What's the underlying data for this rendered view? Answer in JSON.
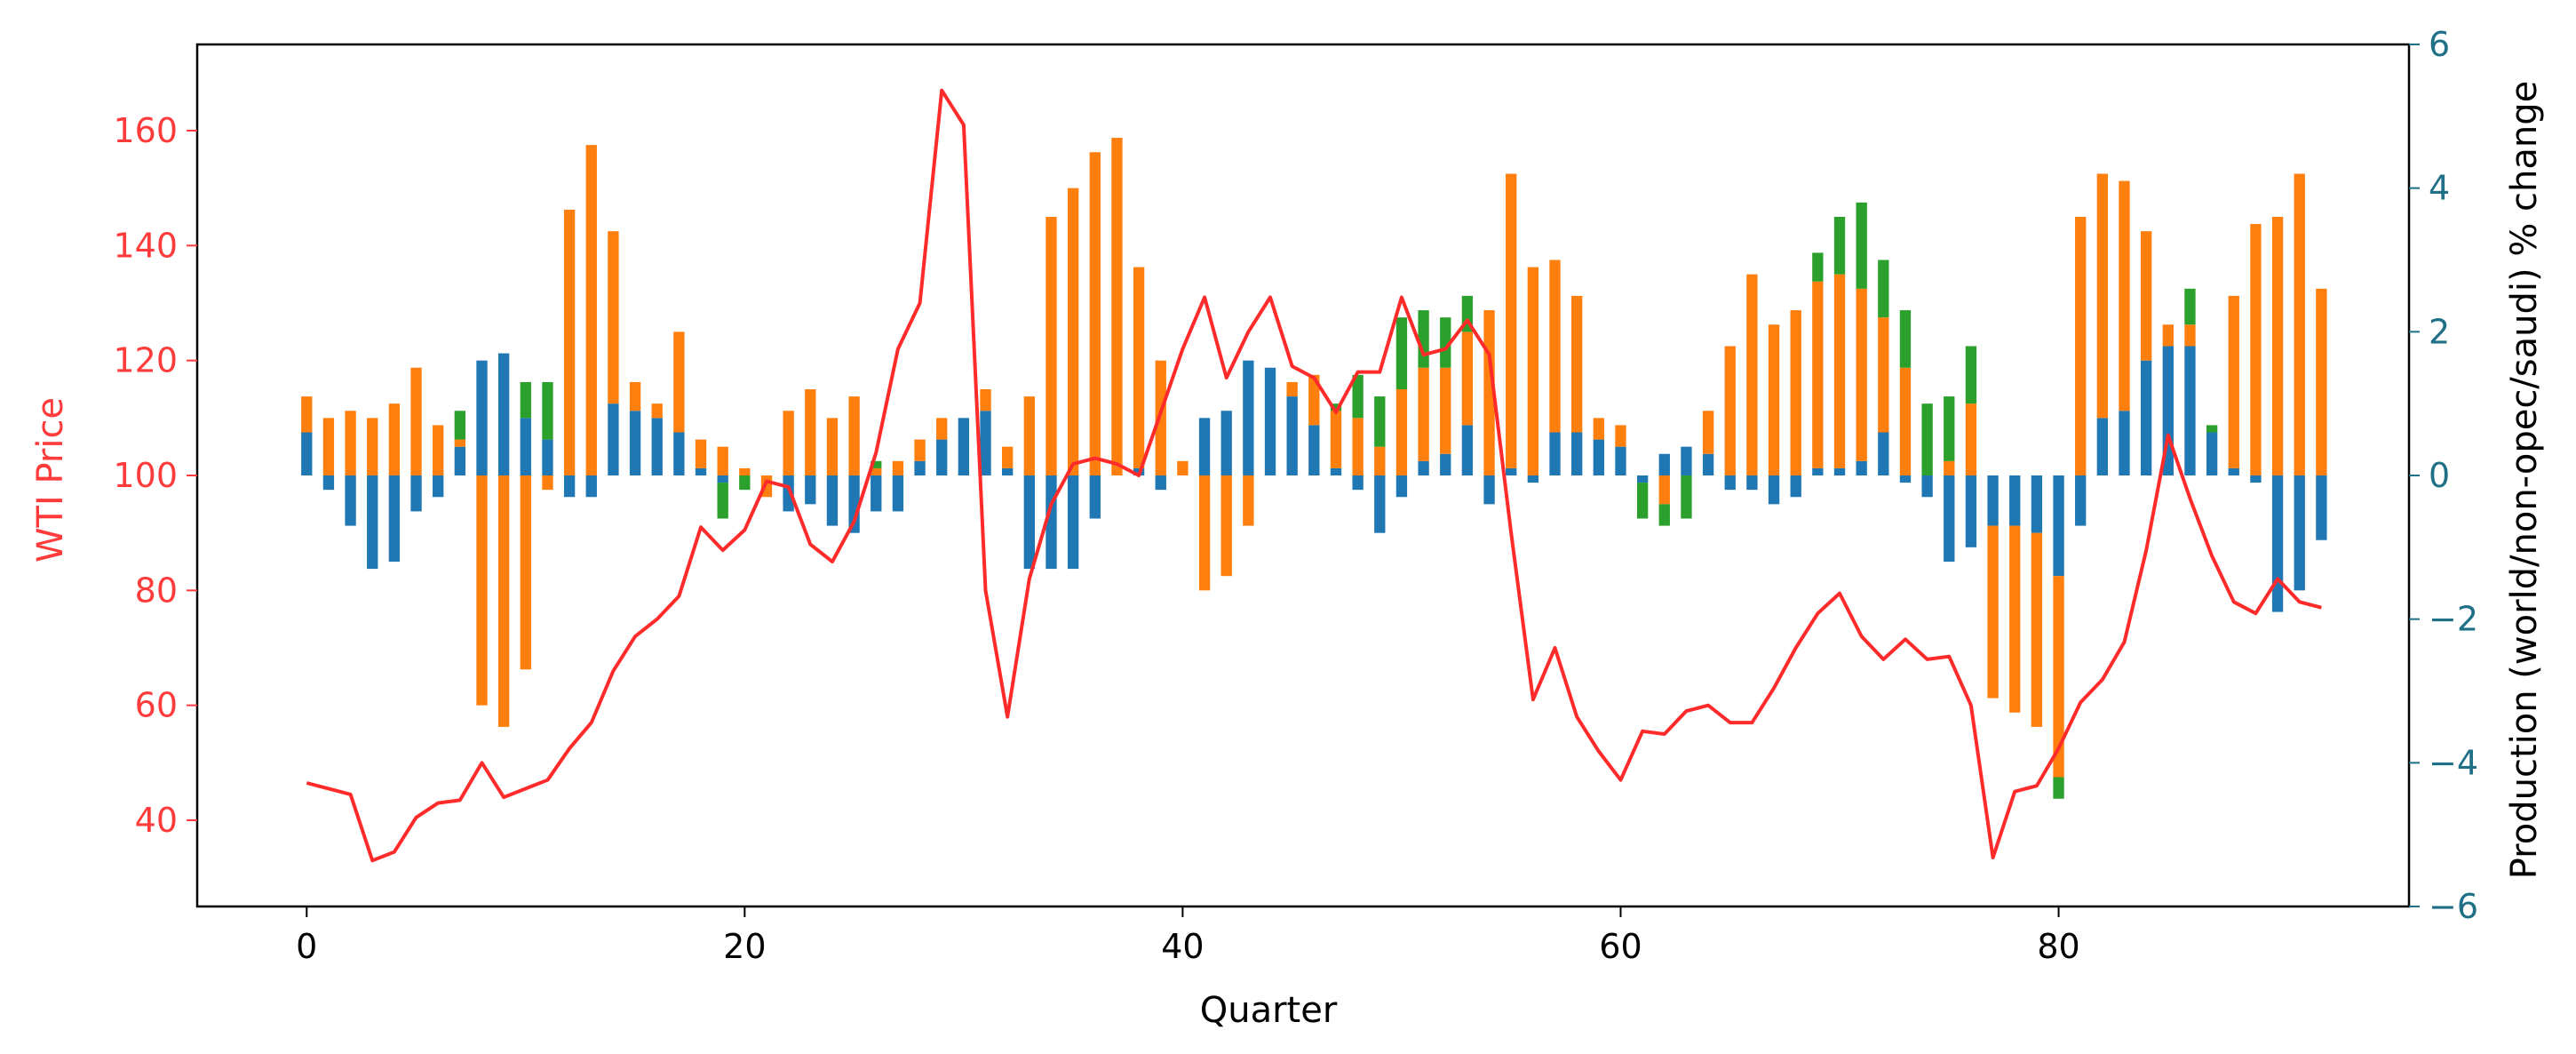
{
  "chart_data": {
    "type": "bar+line",
    "xlabel": "Quarter",
    "ylabel_left": "WTI Price",
    "ylabel_right": "Production (world/non-opec/saudi) % change",
    "xlim": [
      -5,
      96
    ],
    "ylim_left": [
      25,
      175
    ],
    "ylim_right": [
      -6,
      6
    ],
    "x_ticks": [
      0,
      20,
      40,
      60,
      80
    ],
    "y_ticks_left": [
      40,
      60,
      80,
      100,
      120,
      140,
      160
    ],
    "y_ticks_right": [
      -6,
      -4,
      -2,
      0,
      2,
      4,
      6
    ],
    "y_tick_labels_right": [
      "−6",
      "−4",
      "−2",
      "0",
      "2",
      "4",
      "6"
    ],
    "grid": false,
    "colors": {
      "price_line": "#ff2b2b",
      "left_axis": "#ff3b3b",
      "right_axis": "#1f6f86",
      "series_blue": "#1f77b4",
      "series_orange": "#ff7f0e",
      "series_green": "#2ca02c",
      "frame": "#000000",
      "text": "#000000"
    },
    "price_series": {
      "x": [
        0,
        1,
        2,
        3,
        4,
        5,
        6,
        7,
        8,
        9,
        10,
        11,
        12,
        13,
        14,
        15,
        16,
        17,
        18,
        19,
        20,
        21,
        22,
        23,
        24,
        25,
        26,
        27,
        28,
        29,
        30,
        31,
        32,
        33,
        34,
        35,
        36,
        37,
        38,
        39,
        40,
        41,
        42,
        43,
        44,
        45,
        46,
        47,
        48,
        49,
        50,
        51,
        52,
        53,
        54,
        55,
        56,
        57,
        58,
        59,
        60,
        61,
        62,
        63,
        64,
        65,
        66,
        67,
        68,
        69,
        70,
        71,
        72,
        73,
        74,
        75,
        76,
        77,
        78,
        79,
        80,
        81,
        82,
        83,
        84,
        85,
        86,
        87,
        88,
        89,
        90,
        91,
        92
      ],
      "values": [
        46.5,
        45.5,
        44.5,
        33,
        34.5,
        40.5,
        43,
        43.5,
        50,
        44,
        45.5,
        47,
        52.5,
        57,
        66,
        72,
        75,
        79,
        91,
        87,
        90.5,
        99,
        98,
        88,
        85,
        92,
        104,
        122,
        130,
        167,
        161,
        80,
        58,
        82,
        95,
        102,
        103,
        102,
        100,
        111,
        122,
        131,
        117,
        125,
        131,
        119,
        117,
        111,
        118,
        118,
        131,
        121,
        122,
        127,
        121,
        90,
        61,
        70,
        58,
        52,
        47,
        55.5,
        55,
        59,
        60,
        57,
        57,
        63,
        70,
        76,
        79.5,
        72,
        68,
        71.5,
        68,
        68.5,
        60,
        33.5,
        45,
        46,
        52.5,
        60.5,
        64.5,
        71,
        87,
        107,
        96,
        86,
        78,
        76,
        82,
        78,
        77
      ]
    },
    "bar_series": [
      {
        "color": "blue",
        "values": [
          0.6,
          -0.2,
          -0.7,
          -1.3,
          -1.2,
          -0.5,
          -0.3,
          0.4,
          1.6,
          1.7,
          0.8,
          0.5,
          -0.3,
          -0.3,
          1.0,
          0.9,
          0.8,
          0.6,
          0.1,
          -0.1,
          0.0,
          0.0,
          -0.5,
          -0.4,
          -0.7,
          -0.8,
          -0.5,
          -0.5,
          0.2,
          0.5,
          0.8,
          0.9,
          0.1,
          -1.3,
          -1.3,
          -1.3,
          -0.6,
          0.0,
          0.1,
          -0.2,
          0.0,
          0.8,
          0.9,
          1.6,
          1.5,
          1.1,
          0.7,
          0.1,
          -0.2,
          -0.8,
          -0.3,
          0.2,
          0.3,
          0.7,
          -0.4,
          0.1,
          -0.1,
          0.6,
          0.6,
          0.5,
          0.4,
          -0.1,
          0.3,
          0.4,
          0.3,
          -0.2,
          -0.2,
          -0.4,
          -0.3,
          0.1,
          0.1,
          0.2,
          0.6,
          -0.1,
          -0.3,
          -1.2,
          -1.0,
          -0.7,
          -0.7,
          -0.8,
          -1.4,
          -0.7,
          0.8,
          0.9,
          1.6,
          1.8,
          1.8,
          0.6,
          0.1,
          -0.1,
          -1.9,
          -1.6,
          -0.9
        ]
      },
      {
        "color": "orange",
        "values": [
          0.5,
          0.8,
          0.9,
          0.8,
          1.0,
          1.5,
          0.7,
          0.1,
          -3.2,
          -3.5,
          -2.7,
          -0.2,
          3.7,
          4.6,
          2.4,
          0.4,
          0.2,
          1.4,
          0.4,
          0.4,
          0.1,
          -0.3,
          0.9,
          1.2,
          0.8,
          1.1,
          0.1,
          0.2,
          0.3,
          0.3,
          0.0,
          0.3,
          0.3,
          1.1,
          3.6,
          4.0,
          4.5,
          4.7,
          2.8,
          1.6,
          0.2,
          -1.6,
          -1.4,
          -0.7,
          0.0,
          0.2,
          0.7,
          0.8,
          0.8,
          0.4,
          1.2,
          1.3,
          1.2,
          1.3,
          2.3,
          4.1,
          2.9,
          2.4,
          1.9,
          0.3,
          0.3,
          0.0,
          -0.4,
          0.0,
          0.6,
          1.8,
          2.8,
          2.1,
          2.3,
          2.6,
          2.7,
          2.4,
          1.6,
          1.5,
          0.0,
          0.2,
          1.0,
          -2.4,
          -2.6,
          -2.7,
          -2.8,
          3.6,
          3.4,
          3.2,
          1.8,
          0.3,
          0.3,
          0.0,
          2.4,
          3.5,
          3.6,
          4.2,
          2.6
        ]
      },
      {
        "color": "green",
        "values": [
          0.0,
          0.0,
          0.0,
          0.0,
          0.0,
          0.0,
          0.0,
          0.4,
          0.0,
          0.0,
          0.5,
          0.8,
          0.0,
          0.0,
          0.0,
          0.0,
          0.0,
          0.0,
          0.0,
          -0.5,
          -0.2,
          0.0,
          0.0,
          0.0,
          0.0,
          0.0,
          0.1,
          0.0,
          0.0,
          0.0,
          0.0,
          0.0,
          0.0,
          0.0,
          0.0,
          0.0,
          0.0,
          0.0,
          0.0,
          0.0,
          0.0,
          0.0,
          0.0,
          0.0,
          0.0,
          0.0,
          0.0,
          0.1,
          0.6,
          0.7,
          1.0,
          0.8,
          0.7,
          0.5,
          0.0,
          0.0,
          0.0,
          0.0,
          0.0,
          0.0,
          0.0,
          -0.5,
          -0.3,
          -0.6,
          0.0,
          0.0,
          0.0,
          0.0,
          0.0,
          0.4,
          0.8,
          1.2,
          0.8,
          0.8,
          1.0,
          0.9,
          0.8,
          0.0,
          0.0,
          0.0,
          -0.3,
          0.0,
          0.0,
          0.0,
          0.0,
          0.0,
          0.5,
          0.1,
          0.0,
          0.0,
          0.0,
          0.0,
          0.0
        ]
      }
    ]
  }
}
